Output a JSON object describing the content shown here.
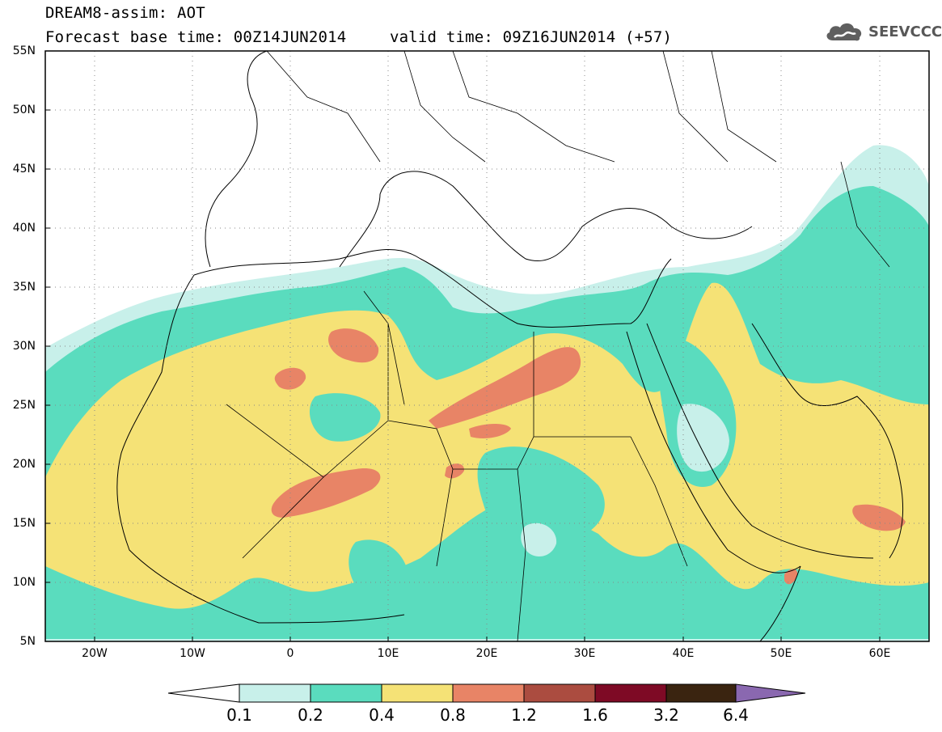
{
  "header": {
    "title_line1": "DREAM8-assim: AOT",
    "title_line2": "Forecast base time: 00Z14JUN2014",
    "valid_time": "valid time: 09Z16JUN2014 (+57)",
    "logo_text": "SEEVCCC",
    "logo_icon": "cloud-icon"
  },
  "map": {
    "lat_labels": [
      "55N",
      "50N",
      "45N",
      "40N",
      "35N",
      "30N",
      "25N",
      "20N",
      "15N",
      "10N",
      "5N"
    ],
    "lon_labels": [
      "20W",
      "10W",
      "0",
      "10E",
      "20E",
      "30E",
      "40E",
      "50E",
      "60E"
    ],
    "lat_range": [
      5,
      55
    ],
    "lon_range": [
      -25,
      65
    ],
    "grid": "dotted"
  },
  "legend": {
    "levels": [
      "0.1",
      "0.2",
      "0.4",
      "0.8",
      "1.2",
      "1.6",
      "3.2",
      "6.4"
    ],
    "colors": [
      "#ffffff",
      "#c8f0ea",
      "#5adcbe",
      "#f5e276",
      "#e88466",
      "#ab4c40",
      "#7e0a25",
      "#3a2410",
      "#8a68b0"
    ]
  }
}
